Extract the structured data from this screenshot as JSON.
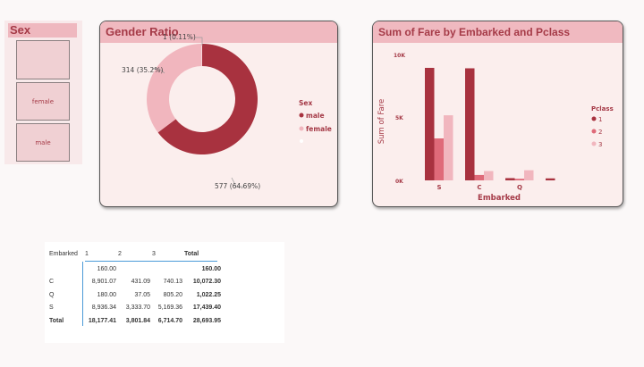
{
  "slicer": {
    "title": "Sex",
    "items": [
      "",
      "female",
      "male"
    ]
  },
  "gender_card": {
    "title": "Gender Ratio",
    "legend_title": "Sex",
    "legend": [
      "male",
      "female"
    ],
    "labels": {
      "male": "577 (64.69%)",
      "female": "314 (35.2%)",
      "blank": "1 (0.11%)"
    }
  },
  "fare_card": {
    "title": "Sum of Fare by Embarked and Pclass",
    "legend_title": "Pclass",
    "legend": [
      "1",
      "2",
      "3"
    ]
  },
  "colors": {
    "c1": "#a8323f",
    "c2": "#df6a79",
    "c3": "#f1b6be",
    "accent": "#a53a47"
  },
  "chart_data": [
    {
      "type": "pie",
      "title": "Gender Ratio",
      "categories": [
        "male",
        "female",
        ""
      ],
      "values": [
        577,
        314,
        1
      ],
      "percent": [
        64.69,
        35.2,
        0.11
      ],
      "legend_title": "Sex",
      "legend_position": "right"
    },
    {
      "type": "bar",
      "title": "Sum of Fare by Embarked and Pclass",
      "xlabel": "Embarked",
      "ylabel": "Sum of Fare",
      "categories": [
        "S",
        "C",
        "Q",
        ""
      ],
      "series": [
        {
          "name": "1",
          "values": [
            8936.34,
            8901.07,
            180.0,
            160.0
          ]
        },
        {
          "name": "2",
          "values": [
            3333.7,
            431.09,
            37.05,
            0
          ]
        },
        {
          "name": "3",
          "values": [
            5169.36,
            740.13,
            805.2,
            0
          ]
        }
      ],
      "ylim": [
        0,
        10000
      ],
      "yticks": [
        "0K",
        "5K",
        "10K"
      ],
      "legend_title": "Pclass",
      "legend_position": "right"
    }
  ],
  "matrix": {
    "headers": [
      "Embarked",
      "1",
      "2",
      "3",
      "Total"
    ],
    "rows": [
      [
        "",
        "160.00",
        "",
        "",
        "160.00"
      ],
      [
        "C",
        "8,901.07",
        "431.09",
        "740.13",
        "10,072.30"
      ],
      [
        "Q",
        "180.00",
        "37.05",
        "805.20",
        "1,022.25"
      ],
      [
        "S",
        "8,936.34",
        "3,333.70",
        "5,169.36",
        "17,439.40"
      ],
      [
        "Total",
        "18,177.41",
        "3,801.84",
        "6,714.70",
        "28,693.95"
      ]
    ]
  }
}
